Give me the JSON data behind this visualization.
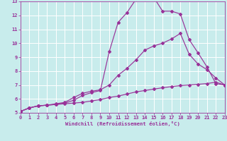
{
  "bg_color": "#c8ecec",
  "grid_color": "#ffffff",
  "line_color": "#993399",
  "xlabel": "Windchill (Refroidissement éolien,°C)",
  "xlim": [
    0,
    23
  ],
  "ylim": [
    5,
    13
  ],
  "xticks": [
    0,
    1,
    2,
    3,
    4,
    5,
    6,
    7,
    8,
    9,
    10,
    11,
    12,
    13,
    14,
    15,
    16,
    17,
    18,
    19,
    20,
    21,
    22,
    23
  ],
  "yticks": [
    5,
    6,
    7,
    8,
    9,
    10,
    11,
    12,
    13
  ],
  "line1_x": [
    0,
    1,
    2,
    3,
    4,
    5,
    6,
    7,
    8,
    9,
    10,
    11,
    12,
    13,
    14,
    15,
    16,
    17,
    18,
    19,
    20,
    21,
    22,
    23
  ],
  "line1_y": [
    5.1,
    5.35,
    5.5,
    5.55,
    5.6,
    5.65,
    5.7,
    5.75,
    5.85,
    5.95,
    6.1,
    6.2,
    6.35,
    6.5,
    6.6,
    6.7,
    6.8,
    6.88,
    6.95,
    7.0,
    7.05,
    7.1,
    7.2,
    7.0
  ],
  "line2_x": [
    0,
    1,
    2,
    3,
    4,
    5,
    6,
    7,
    8,
    9,
    10,
    11,
    12,
    13,
    14,
    15,
    16,
    17,
    18,
    19,
    20,
    21,
    22,
    23
  ],
  "line2_y": [
    5.1,
    5.35,
    5.5,
    5.55,
    5.65,
    5.75,
    6.1,
    6.4,
    6.55,
    6.65,
    7.0,
    7.7,
    8.2,
    8.8,
    9.5,
    9.8,
    10.0,
    10.3,
    10.7,
    9.2,
    8.5,
    8.1,
    7.5,
    7.0
  ],
  "line3_x": [
    0,
    1,
    2,
    3,
    4,
    5,
    6,
    7,
    8,
    9,
    10,
    11,
    12,
    13,
    14,
    15,
    16,
    17,
    18,
    19,
    20,
    21,
    22,
    23
  ],
  "line3_y": [
    5.1,
    5.35,
    5.5,
    5.55,
    5.6,
    5.7,
    5.9,
    6.25,
    6.45,
    6.6,
    9.4,
    11.5,
    12.2,
    13.15,
    13.3,
    13.3,
    12.3,
    12.3,
    12.1,
    10.25,
    9.3,
    8.3,
    7.1,
    7.0
  ]
}
